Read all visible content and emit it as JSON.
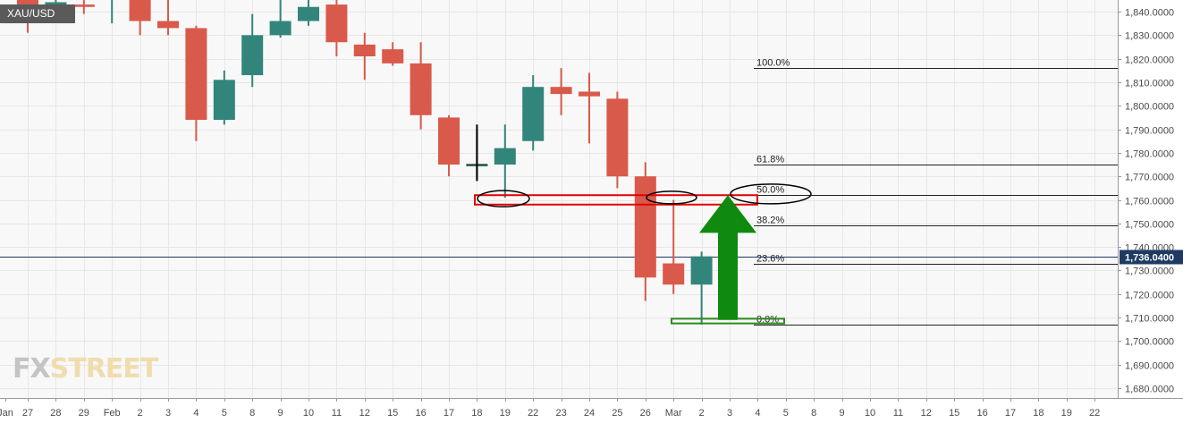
{
  "symbol": "XAU/USD",
  "watermark": {
    "part1": "FX",
    "part2": "STREET"
  },
  "colors": {
    "up": "#32857a",
    "down": "#d95a4a",
    "grid": "#e7e7e7",
    "current_price_bg": "#1f3a62",
    "zone_red": "#e60000",
    "zone_green": "#2d8a1e",
    "arrow": "#0f8a0f"
  },
  "chart_data": {
    "type": "candlestick",
    "y_axis": {
      "range": [
        1675,
        1843
      ],
      "ticks": [
        "1,680.0000",
        "1,690.0000",
        "1,700.0000",
        "1,710.0000",
        "1,720.0000",
        "1,730.0000",
        "1,740.0000",
        "1,750.0000",
        "1,760.0000",
        "1,770.0000",
        "1,780.0000",
        "1,790.0000",
        "1,800.0000",
        "1,810.0000",
        "1,820.0000",
        "1,830.0000",
        "1,840.0000"
      ]
    },
    "x_axis": {
      "labels": [
        "Jan",
        "27",
        "28",
        "29",
        "Feb",
        "2",
        "3",
        "4",
        "5",
        "8",
        "9",
        "10",
        "11",
        "12",
        "15",
        "16",
        "17",
        "18",
        "19",
        "22",
        "23",
        "24",
        "25",
        "26",
        "Mar",
        "2",
        "3",
        "4",
        "5",
        "8",
        "9",
        "10",
        "11",
        "12",
        "15",
        "16",
        "17",
        "18",
        "19",
        "22"
      ]
    },
    "candles": [
      {
        "date": "27",
        "open": 1845,
        "high": 1848,
        "low": 1831,
        "close": 1842
      },
      {
        "date": "28",
        "open": 1842,
        "high": 1848,
        "low": 1836,
        "close": 1844
      },
      {
        "date": "29",
        "open": 1843,
        "high": 1848,
        "low": 1839,
        "close": 1842
      },
      {
        "date": "Feb 1",
        "open": 1848,
        "high": 1865,
        "low": 1835,
        "close": 1860
      },
      {
        "date": "2",
        "open": 1857,
        "high": 1858,
        "low": 1830,
        "close": 1836
      },
      {
        "date": "3",
        "open": 1836,
        "high": 1847,
        "low": 1830,
        "close": 1833
      },
      {
        "date": "4",
        "open": 1833,
        "high": 1834,
        "low": 1785,
        "close": 1794
      },
      {
        "date": "5",
        "open": 1794,
        "high": 1815,
        "low": 1792,
        "close": 1811
      },
      {
        "date": "8",
        "open": 1813,
        "high": 1839,
        "low": 1808,
        "close": 1830
      },
      {
        "date": "9",
        "open": 1830,
        "high": 1855,
        "low": 1829,
        "close": 1836
      },
      {
        "date": "10",
        "open": 1836,
        "high": 1848,
        "low": 1834,
        "close": 1842
      },
      {
        "date": "11",
        "open": 1843,
        "high": 1846,
        "low": 1821,
        "close": 1827
      },
      {
        "date": "12",
        "open": 1826,
        "high": 1831,
        "low": 1811,
        "close": 1821
      },
      {
        "date": "15",
        "open": 1824,
        "high": 1827,
        "low": 1817,
        "close": 1818
      },
      {
        "date": "16",
        "open": 1818,
        "high": 1827,
        "low": 1790,
        "close": 1796
      },
      {
        "date": "17",
        "open": 1795,
        "high": 1796,
        "low": 1770,
        "close": 1775
      },
      {
        "date": "18",
        "open": 1775,
        "high": 1790,
        "low": 1769,
        "close": 1775
      },
      {
        "date": "19",
        "open": 1775,
        "high": 1792,
        "low": 1761,
        "close": 1782
      },
      {
        "date": "22",
        "open": 1785,
        "high": 1813,
        "low": 1781,
        "close": 1808
      },
      {
        "date": "23",
        "open": 1808,
        "high": 1816,
        "low": 1796,
        "close": 1805
      },
      {
        "date": "24",
        "open": 1806,
        "high": 1814,
        "low": 1784,
        "close": 1804
      },
      {
        "date": "25",
        "open": 1803,
        "high": 1806,
        "low": 1765,
        "close": 1770
      },
      {
        "date": "26",
        "open": 1770,
        "high": 1776,
        "low": 1717,
        "close": 1727
      },
      {
        "date": "Mar 1",
        "open": 1733,
        "high": 1760,
        "low": 1720,
        "close": 1724
      },
      {
        "date": "2",
        "open": 1724,
        "high": 1738,
        "low": 1707,
        "close": 1736
      }
    ],
    "fibonacci": [
      {
        "label": "100.0%",
        "price": 1816
      },
      {
        "label": "61.8%",
        "price": 1775
      },
      {
        "label": "50.0%",
        "price": 1762
      },
      {
        "label": "38.2%",
        "price": 1749
      },
      {
        "label": "23.6%",
        "price": 1733
      },
      {
        "label": "0.0%",
        "price": 1707
      }
    ],
    "current_price": {
      "value": 1736.04,
      "label": "1,736.0400"
    },
    "annotations": {
      "resistance_zone_price": [
        1758,
        1762
      ],
      "support_zone_price": [
        1707.5,
        1709.5
      ]
    }
  }
}
